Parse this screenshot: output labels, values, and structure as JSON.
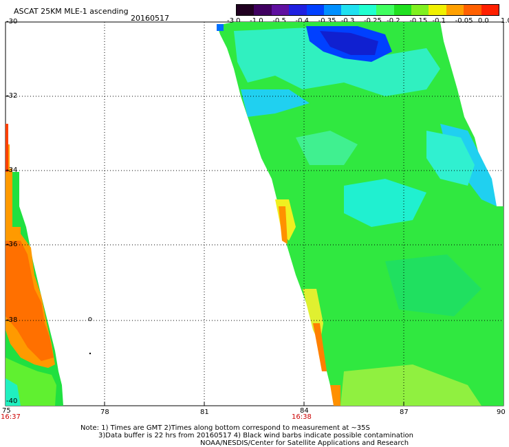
{
  "header": {
    "title": "ASCAT 25KM MLE-1 ascending",
    "date": "20160517"
  },
  "colorbar": {
    "labels": [
      "-3.0",
      "-1.0",
      "-0.5",
      "-0.4",
      "-0.35",
      "-0.3",
      "-0.25",
      "-0.2",
      "-0.15",
      "-0.1",
      "-0.05",
      "0.0",
      "1.0"
    ],
    "colors": [
      "#200020",
      "#400060",
      "#6010a0",
      "#2020e0",
      "#0040ff",
      "#0090ff",
      "#20e0f0",
      "#20ffd0",
      "#40ff60",
      "#20e020",
      "#80f020",
      "#f0f000",
      "#ffa000",
      "#ff6000",
      "#ff2000"
    ]
  },
  "axes": {
    "y_ticks": [
      "-30",
      "-32",
      "-34",
      "-36",
      "-38",
      "-40"
    ],
    "x_ticks": [
      "75",
      "78",
      "81",
      "84",
      "87",
      "90"
    ],
    "times": [
      "16:37",
      "16:38"
    ]
  },
  "notes": {
    "line1": "Note: 1) Times are GMT 2)Times along bottom correspond to measurement at ~35S",
    "line2": "3)Data buffer is 22 hrs from 20160517 4) Black wind barbs indicate possible contamination",
    "line3": "NOAA/NESDIS/Center for Satellite Applications and Research"
  },
  "swaths": [
    {
      "name": "east-swath",
      "dominant_color": "#20e040"
    },
    {
      "name": "west-swath",
      "dominant_color": "#ff9000"
    }
  ]
}
